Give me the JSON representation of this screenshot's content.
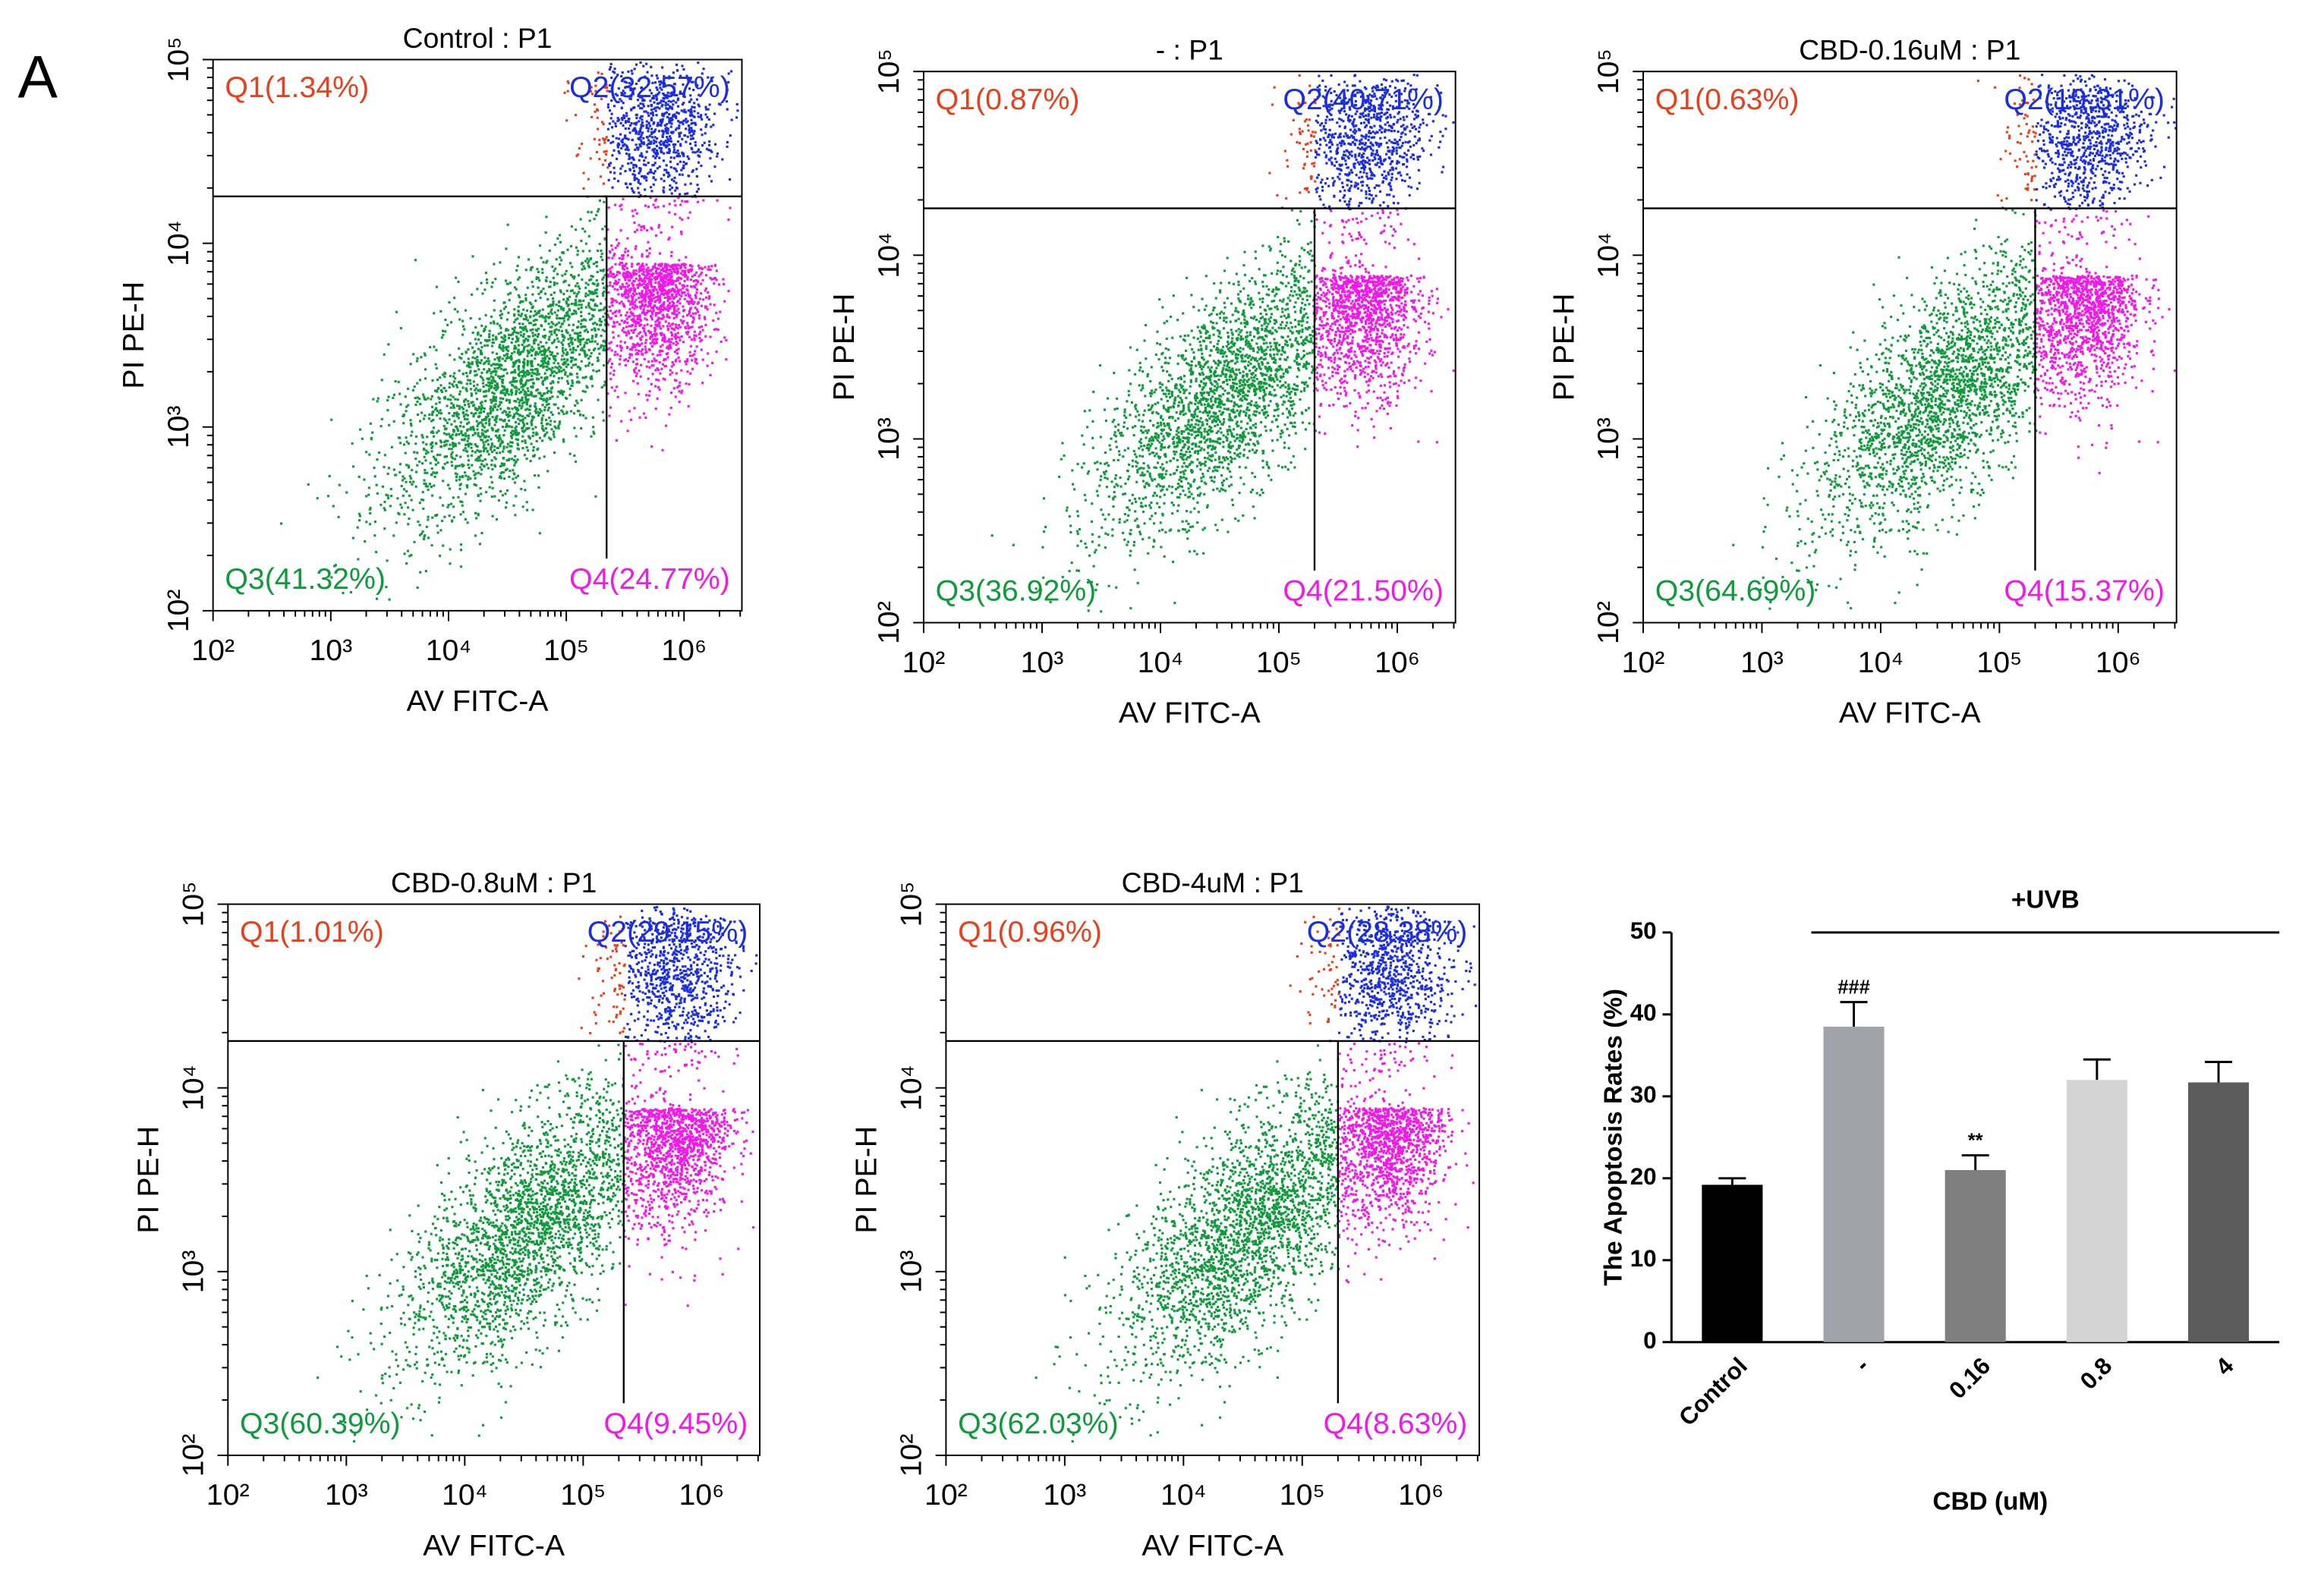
{
  "panel_label": "A",
  "chart_data": [
    {
      "type": "scatter",
      "title": "Control : P1",
      "xlabel": "AV FITC-A",
      "ylabel": "PI PE-H",
      "xscale": "log",
      "yscale": "log",
      "xlim": [
        100,
        3100000
      ],
      "ylim": [
        100,
        100000
      ],
      "xticks": [
        {
          "value": 100,
          "label": "10²"
        },
        {
          "value": 1000,
          "label": "10³"
        },
        {
          "value": 10000,
          "label": "10⁴"
        },
        {
          "value": 100000,
          "label": "10⁵"
        },
        {
          "value": 1000000,
          "label": "10⁶"
        }
      ],
      "yticks": [
        {
          "value": 100,
          "label": "10²"
        },
        {
          "value": 1000,
          "label": "10³"
        },
        {
          "value": 10000,
          "label": "10⁴"
        },
        {
          "value": 100000,
          "label": "10⁵"
        }
      ],
      "gates": {
        "x": 220000,
        "y": 18000
      },
      "annotations": [
        {
          "text": "Q1(1.34%)",
          "color": "#e8401c"
        },
        {
          "text": "Q2(32.57%)",
          "color": "#1a2ee0"
        },
        {
          "text": "Q3(41.32%)",
          "color": "#0f9a3c"
        },
        {
          "text": "Q4(24.77%)",
          "color": "#f019e8"
        }
      ]
    },
    {
      "type": "scatter",
      "title": "- : P1",
      "xlabel": "AV FITC-A",
      "ylabel": "PI PE-H",
      "xscale": "log",
      "yscale": "log",
      "xlim": [
        100,
        3100000
      ],
      "ylim": [
        100,
        100000
      ],
      "xticks": [
        {
          "value": 100,
          "label": "10²"
        },
        {
          "value": 1000,
          "label": "10³"
        },
        {
          "value": 10000,
          "label": "10⁴"
        },
        {
          "value": 100000,
          "label": "10⁵"
        },
        {
          "value": 1000000,
          "label": "10⁶"
        }
      ],
      "yticks": [
        {
          "value": 100,
          "label": "10²"
        },
        {
          "value": 1000,
          "label": "10³"
        },
        {
          "value": 10000,
          "label": "10⁴"
        },
        {
          "value": 100000,
          "label": "10⁵"
        }
      ],
      "gates": {
        "x": 200000,
        "y": 18000
      },
      "annotations": [
        {
          "text": "Q1(0.87%)",
          "color": "#e8401c"
        },
        {
          "text": "Q2(40.71%)",
          "color": "#1a2ee0"
        },
        {
          "text": "Q3(36.92%)",
          "color": "#0f9a3c"
        },
        {
          "text": "Q4(21.50%)",
          "color": "#f019e8"
        }
      ]
    },
    {
      "type": "scatter",
      "title": "CBD-0.16uM : P1",
      "xlabel": "AV FITC-A",
      "ylabel": "PI PE-H",
      "xscale": "log",
      "yscale": "log",
      "xlim": [
        100,
        3100000
      ],
      "ylim": [
        100,
        100000
      ],
      "xticks": [
        {
          "value": 100,
          "label": "10²"
        },
        {
          "value": 1000,
          "label": "10³"
        },
        {
          "value": 10000,
          "label": "10⁴"
        },
        {
          "value": 100000,
          "label": "10⁵"
        },
        {
          "value": 1000000,
          "label": "10⁶"
        }
      ],
      "yticks": [
        {
          "value": 100,
          "label": "10²"
        },
        {
          "value": 1000,
          "label": "10³"
        },
        {
          "value": 10000,
          "label": "10⁴"
        },
        {
          "value": 100000,
          "label": "10⁵"
        }
      ],
      "gates": {
        "x": 200000,
        "y": 18000
      },
      "annotations": [
        {
          "text": "Q1(0.63%)",
          "color": "#e8401c"
        },
        {
          "text": "Q2(19.31%)",
          "color": "#1a2ee0"
        },
        {
          "text": "Q3(64.69%)",
          "color": "#0f9a3c"
        },
        {
          "text": "Q4(15.37%)",
          "color": "#f019e8"
        }
      ]
    },
    {
      "type": "scatter",
      "title": "CBD-0.8uM : P1",
      "xlabel": "AV FITC-A",
      "ylabel": "PI PE-H",
      "xscale": "log",
      "yscale": "log",
      "xlim": [
        100,
        3100000
      ],
      "ylim": [
        100,
        100000
      ],
      "xticks": [
        {
          "value": 100,
          "label": "10²"
        },
        {
          "value": 1000,
          "label": "10³"
        },
        {
          "value": 10000,
          "label": "10⁴"
        },
        {
          "value": 100000,
          "label": "10⁵"
        },
        {
          "value": 1000000,
          "label": "10⁶"
        }
      ],
      "yticks": [
        {
          "value": 100,
          "label": "10²"
        },
        {
          "value": 1000,
          "label": "10³"
        },
        {
          "value": 10000,
          "label": "10⁴"
        },
        {
          "value": 100000,
          "label": "10⁵"
        }
      ],
      "gates": {
        "x": 220000,
        "y": 18000
      },
      "annotations": [
        {
          "text": "Q1(1.01%)",
          "color": "#e8401c"
        },
        {
          "text": "Q2(29.15%)",
          "color": "#1a2ee0"
        },
        {
          "text": "Q3(60.39%)",
          "color": "#0f9a3c"
        },
        {
          "text": "Q4(9.45%)",
          "color": "#f019e8"
        }
      ]
    },
    {
      "type": "scatter",
      "title": "CBD-4uM : P1",
      "xlabel": "AV FITC-A",
      "ylabel": "PI PE-H",
      "xscale": "log",
      "yscale": "log",
      "xlim": [
        100,
        3100000
      ],
      "ylim": [
        100,
        100000
      ],
      "xticks": [
        {
          "value": 100,
          "label": "10²"
        },
        {
          "value": 1000,
          "label": "10³"
        },
        {
          "value": 10000,
          "label": "10⁴"
        },
        {
          "value": 100000,
          "label": "10⁵"
        },
        {
          "value": 1000000,
          "label": "10⁶"
        }
      ],
      "yticks": [
        {
          "value": 100,
          "label": "10²"
        },
        {
          "value": 1000,
          "label": "10³"
        },
        {
          "value": 10000,
          "label": "10⁴"
        },
        {
          "value": 100000,
          "label": "10⁵"
        }
      ],
      "gates": {
        "x": 200000,
        "y": 18000
      },
      "annotations": [
        {
          "text": "Q1(0.96%)",
          "color": "#e8401c"
        },
        {
          "text": "Q2(28.38%)",
          "color": "#1a2ee0"
        },
        {
          "text": "Q3(62.03%)",
          "color": "#0f9a3c"
        },
        {
          "text": "Q4(8.63%)",
          "color": "#f019e8"
        }
      ]
    },
    {
      "type": "bar",
      "xlabel": "CBD (uM)",
      "ylabel": "The Apoptosis Rates (%)",
      "group_label": "+UVB",
      "categories": [
        "Control",
        "-",
        "0.16",
        "0.8",
        "4"
      ],
      "values": [
        19.2,
        38.5,
        21.0,
        32.0,
        31.7
      ],
      "errors": [
        0.8,
        3.0,
        1.8,
        2.5,
        2.5
      ],
      "colors": [
        "#000000",
        "#a2a2aa",
        "#7f7f7f",
        "#d4d4d4",
        "#5c5c5c"
      ],
      "significance": [
        null,
        "###",
        "**",
        null,
        null
      ],
      "ylim": [
        0,
        50
      ],
      "yticks": [
        0,
        10,
        20,
        30,
        40,
        50
      ]
    }
  ]
}
